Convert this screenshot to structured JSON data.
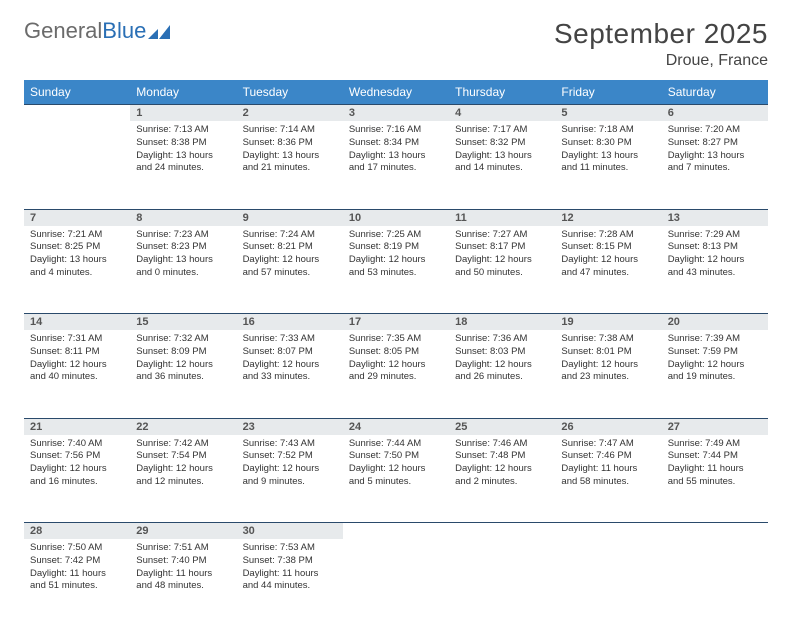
{
  "brand": {
    "word1": "General",
    "word2": "Blue"
  },
  "title": "September 2025",
  "location": "Droue, France",
  "colors": {
    "header_bg": "#3b86c8",
    "header_text": "#ffffff",
    "daynum_bg": "#e7eaec",
    "daynum_border": "#2a4a6b",
    "logo_gray": "#6b6b6b",
    "logo_blue": "#2a6fb5"
  },
  "weekdays": [
    "Sunday",
    "Monday",
    "Tuesday",
    "Wednesday",
    "Thursday",
    "Friday",
    "Saturday"
  ],
  "weeks": [
    [
      null,
      {
        "n": "1",
        "sr": "7:13 AM",
        "ss": "8:38 PM",
        "dl": "13 hours and 24 minutes."
      },
      {
        "n": "2",
        "sr": "7:14 AM",
        "ss": "8:36 PM",
        "dl": "13 hours and 21 minutes."
      },
      {
        "n": "3",
        "sr": "7:16 AM",
        "ss": "8:34 PM",
        "dl": "13 hours and 17 minutes."
      },
      {
        "n": "4",
        "sr": "7:17 AM",
        "ss": "8:32 PM",
        "dl": "13 hours and 14 minutes."
      },
      {
        "n": "5",
        "sr": "7:18 AM",
        "ss": "8:30 PM",
        "dl": "13 hours and 11 minutes."
      },
      {
        "n": "6",
        "sr": "7:20 AM",
        "ss": "8:27 PM",
        "dl": "13 hours and 7 minutes."
      }
    ],
    [
      {
        "n": "7",
        "sr": "7:21 AM",
        "ss": "8:25 PM",
        "dl": "13 hours and 4 minutes."
      },
      {
        "n": "8",
        "sr": "7:23 AM",
        "ss": "8:23 PM",
        "dl": "13 hours and 0 minutes."
      },
      {
        "n": "9",
        "sr": "7:24 AM",
        "ss": "8:21 PM",
        "dl": "12 hours and 57 minutes."
      },
      {
        "n": "10",
        "sr": "7:25 AM",
        "ss": "8:19 PM",
        "dl": "12 hours and 53 minutes."
      },
      {
        "n": "11",
        "sr": "7:27 AM",
        "ss": "8:17 PM",
        "dl": "12 hours and 50 minutes."
      },
      {
        "n": "12",
        "sr": "7:28 AM",
        "ss": "8:15 PM",
        "dl": "12 hours and 47 minutes."
      },
      {
        "n": "13",
        "sr": "7:29 AM",
        "ss": "8:13 PM",
        "dl": "12 hours and 43 minutes."
      }
    ],
    [
      {
        "n": "14",
        "sr": "7:31 AM",
        "ss": "8:11 PM",
        "dl": "12 hours and 40 minutes."
      },
      {
        "n": "15",
        "sr": "7:32 AM",
        "ss": "8:09 PM",
        "dl": "12 hours and 36 minutes."
      },
      {
        "n": "16",
        "sr": "7:33 AM",
        "ss": "8:07 PM",
        "dl": "12 hours and 33 minutes."
      },
      {
        "n": "17",
        "sr": "7:35 AM",
        "ss": "8:05 PM",
        "dl": "12 hours and 29 minutes."
      },
      {
        "n": "18",
        "sr": "7:36 AM",
        "ss": "8:03 PM",
        "dl": "12 hours and 26 minutes."
      },
      {
        "n": "19",
        "sr": "7:38 AM",
        "ss": "8:01 PM",
        "dl": "12 hours and 23 minutes."
      },
      {
        "n": "20",
        "sr": "7:39 AM",
        "ss": "7:59 PM",
        "dl": "12 hours and 19 minutes."
      }
    ],
    [
      {
        "n": "21",
        "sr": "7:40 AM",
        "ss": "7:56 PM",
        "dl": "12 hours and 16 minutes."
      },
      {
        "n": "22",
        "sr": "7:42 AM",
        "ss": "7:54 PM",
        "dl": "12 hours and 12 minutes."
      },
      {
        "n": "23",
        "sr": "7:43 AM",
        "ss": "7:52 PM",
        "dl": "12 hours and 9 minutes."
      },
      {
        "n": "24",
        "sr": "7:44 AM",
        "ss": "7:50 PM",
        "dl": "12 hours and 5 minutes."
      },
      {
        "n": "25",
        "sr": "7:46 AM",
        "ss": "7:48 PM",
        "dl": "12 hours and 2 minutes."
      },
      {
        "n": "26",
        "sr": "7:47 AM",
        "ss": "7:46 PM",
        "dl": "11 hours and 58 minutes."
      },
      {
        "n": "27",
        "sr": "7:49 AM",
        "ss": "7:44 PM",
        "dl": "11 hours and 55 minutes."
      }
    ],
    [
      {
        "n": "28",
        "sr": "7:50 AM",
        "ss": "7:42 PM",
        "dl": "11 hours and 51 minutes."
      },
      {
        "n": "29",
        "sr": "7:51 AM",
        "ss": "7:40 PM",
        "dl": "11 hours and 48 minutes."
      },
      {
        "n": "30",
        "sr": "7:53 AM",
        "ss": "7:38 PM",
        "dl": "11 hours and 44 minutes."
      },
      null,
      null,
      null,
      null
    ]
  ],
  "labels": {
    "sunrise": "Sunrise:",
    "sunset": "Sunset:",
    "daylight": "Daylight:"
  }
}
